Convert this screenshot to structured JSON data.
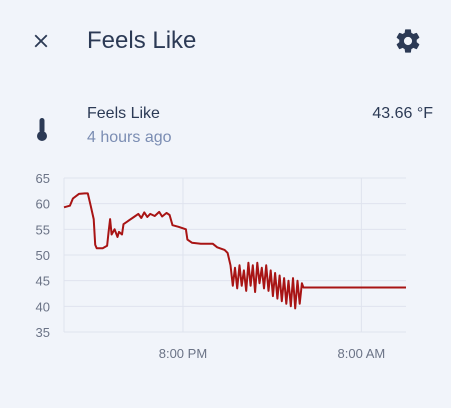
{
  "header": {
    "title": "Feels Like",
    "close_icon": "close-icon",
    "settings_icon": "gear-icon"
  },
  "entity": {
    "name": "Feels Like",
    "last_changed": "4 hours ago",
    "value": "43.66 °F",
    "icon": "thermometer-icon"
  },
  "colors": {
    "line": "#a81414",
    "text_primary": "#2c3a55",
    "text_secondary": "#7b8db3",
    "icon": "#2c3a55",
    "grid": "#dfe3ee"
  },
  "chart_data": {
    "type": "line",
    "title": "",
    "xlabel": "",
    "ylabel": "",
    "ylim": [
      35,
      65
    ],
    "y_ticks": [
      "65",
      "60",
      "55",
      "50",
      "45",
      "40",
      "35"
    ],
    "x_ticks": [
      "8:00 PM",
      "8:00 AM"
    ],
    "x_range_hours": [
      -8.0,
      15.0
    ],
    "x_tick_hours": [
      0,
      12
    ],
    "grid": true,
    "series": [
      {
        "name": "",
        "points": [
          [
            -8.0,
            59.3
          ],
          [
            -7.6,
            59.6
          ],
          [
            -7.4,
            61.0
          ],
          [
            -7.0,
            61.9
          ],
          [
            -6.6,
            62.0
          ],
          [
            -6.4,
            62.0
          ],
          [
            -6.2,
            59.5
          ],
          [
            -6.0,
            57.0
          ],
          [
            -5.9,
            52.0
          ],
          [
            -5.8,
            51.3
          ],
          [
            -5.4,
            51.3
          ],
          [
            -5.1,
            51.8
          ],
          [
            -5.0,
            54.5
          ],
          [
            -4.9,
            57.0
          ],
          [
            -4.8,
            54.0
          ],
          [
            -4.6,
            55.0
          ],
          [
            -4.4,
            53.5
          ],
          [
            -4.3,
            54.5
          ],
          [
            -4.1,
            54.0
          ],
          [
            -4.0,
            56.0
          ],
          [
            -3.6,
            56.8
          ],
          [
            -3.3,
            57.4
          ],
          [
            -3.0,
            58.0
          ],
          [
            -2.8,
            57.2
          ],
          [
            -2.6,
            58.3
          ],
          [
            -2.4,
            57.4
          ],
          [
            -2.2,
            58.0
          ],
          [
            -1.9,
            57.6
          ],
          [
            -1.6,
            58.4
          ],
          [
            -1.4,
            57.5
          ],
          [
            -1.1,
            58.2
          ],
          [
            -0.9,
            57.8
          ],
          [
            -0.7,
            55.8
          ],
          [
            -0.3,
            55.5
          ],
          [
            0.0,
            55.2
          ],
          [
            0.2,
            55.0
          ],
          [
            0.3,
            53.0
          ],
          [
            0.6,
            52.4
          ],
          [
            1.2,
            52.2
          ],
          [
            2.0,
            52.2
          ],
          [
            2.3,
            51.5
          ],
          [
            2.8,
            51.0
          ],
          [
            3.0,
            50.4
          ],
          [
            3.2,
            48.0
          ],
          [
            3.35,
            44.0
          ],
          [
            3.5,
            47.5
          ],
          [
            3.65,
            43.5
          ],
          [
            3.8,
            48.0
          ],
          [
            3.95,
            44.0
          ],
          [
            4.1,
            47.0
          ],
          [
            4.25,
            43.0
          ],
          [
            4.4,
            48.5
          ],
          [
            4.55,
            44.0
          ],
          [
            4.7,
            48.0
          ],
          [
            4.85,
            42.8
          ],
          [
            5.0,
            48.5
          ],
          [
            5.15,
            44.5
          ],
          [
            5.3,
            47.5
          ],
          [
            5.45,
            43.5
          ],
          [
            5.6,
            48.0
          ],
          [
            5.75,
            43.0
          ],
          [
            5.9,
            47.0
          ],
          [
            6.05,
            42.0
          ],
          [
            6.2,
            46.5
          ],
          [
            6.35,
            41.5
          ],
          [
            6.5,
            46.0
          ],
          [
            6.65,
            41.0
          ],
          [
            6.8,
            45.5
          ],
          [
            6.95,
            40.5
          ],
          [
            7.1,
            45.0
          ],
          [
            7.25,
            40.0
          ],
          [
            7.4,
            45.5
          ],
          [
            7.55,
            39.6
          ],
          [
            7.7,
            45.0
          ],
          [
            7.85,
            40.5
          ],
          [
            8.0,
            44.5
          ],
          [
            8.1,
            43.66
          ],
          [
            15.0,
            43.66
          ]
        ]
      }
    ]
  }
}
